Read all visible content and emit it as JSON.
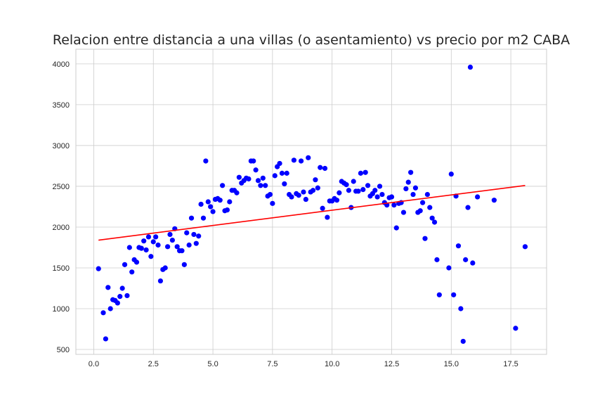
{
  "chart_data": {
    "type": "scatter",
    "title": "Relacion entre distancia a una villas (o asentamiento) vs precio por m2 CABA",
    "xlabel": "",
    "ylabel": "",
    "xlim": [
      -0.75,
      19.0
    ],
    "ylim": [
      440,
      4180
    ],
    "xticks": [
      0.0,
      2.5,
      5.0,
      7.5,
      10.0,
      12.5,
      15.0,
      17.5
    ],
    "xtick_labels": [
      "0.0",
      "2.5",
      "5.0",
      "7.5",
      "10.0",
      "12.5",
      "15.0",
      "17.5"
    ],
    "yticks": [
      500,
      1000,
      1500,
      2000,
      2500,
      3000,
      3500,
      4000
    ],
    "ytick_labels": [
      "500",
      "1000",
      "1500",
      "2000",
      "2500",
      "3000",
      "3500",
      "4000"
    ],
    "grid": true,
    "series": [
      {
        "kind": "scatter",
        "color": "#0000ff",
        "x": [
          0.2,
          0.4,
          0.5,
          0.6,
          0.7,
          0.8,
          0.9,
          1.0,
          1.1,
          1.2,
          1.3,
          1.4,
          1.5,
          1.6,
          1.7,
          1.8,
          1.9,
          2.0,
          2.1,
          2.2,
          2.3,
          2.4,
          2.5,
          2.6,
          2.7,
          2.8,
          2.9,
          3.0,
          3.1,
          3.2,
          3.3,
          3.4,
          3.5,
          3.6,
          3.7,
          3.8,
          3.9,
          4.0,
          4.1,
          4.2,
          4.3,
          4.4,
          4.5,
          4.6,
          4.7,
          4.8,
          4.9,
          5.0,
          5.1,
          5.2,
          5.3,
          5.4,
          5.5,
          5.6,
          5.7,
          5.8,
          5.9,
          6.0,
          6.1,
          6.2,
          6.3,
          6.4,
          6.5,
          6.6,
          6.7,
          6.8,
          6.9,
          7.0,
          7.1,
          7.2,
          7.3,
          7.4,
          7.5,
          7.6,
          7.7,
          7.8,
          7.9,
          8.0,
          8.1,
          8.2,
          8.3,
          8.4,
          8.5,
          8.6,
          8.7,
          8.8,
          8.9,
          9.0,
          9.1,
          9.2,
          9.3,
          9.4,
          9.5,
          9.6,
          9.7,
          9.8,
          9.9,
          10.0,
          10.1,
          10.2,
          10.3,
          10.4,
          10.5,
          10.6,
          10.7,
          10.8,
          10.9,
          11.0,
          11.1,
          11.2,
          11.3,
          11.4,
          11.5,
          11.6,
          11.7,
          11.8,
          11.9,
          12.0,
          12.1,
          12.2,
          12.3,
          12.4,
          12.5,
          12.6,
          12.7,
          12.8,
          12.9,
          13.0,
          13.1,
          13.2,
          13.3,
          13.4,
          13.5,
          13.6,
          13.7,
          13.8,
          13.9,
          14.0,
          14.1,
          14.2,
          14.3,
          14.4,
          14.5,
          14.9,
          15.0,
          15.1,
          15.2,
          15.3,
          15.4,
          15.5,
          15.6,
          15.7,
          15.8,
          15.9,
          16.1,
          16.8,
          17.7,
          18.1
        ],
        "y": [
          1490,
          950,
          630,
          1260,
          1000,
          1110,
          1100,
          1070,
          1150,
          1250,
          1540,
          1160,
          1750,
          1450,
          1600,
          1570,
          1750,
          1740,
          1830,
          1720,
          1880,
          1640,
          1820,
          1880,
          1780,
          1340,
          1480,
          1500,
          1760,
          1910,
          1840,
          1980,
          1760,
          1710,
          1710,
          1540,
          1930,
          1780,
          2110,
          1910,
          1800,
          1890,
          2280,
          2110,
          2810,
          2310,
          2250,
          2190,
          2340,
          2350,
          2330,
          2510,
          2200,
          2210,
          2310,
          2450,
          2450,
          2420,
          2610,
          2540,
          2570,
          2600,
          2590,
          2810,
          2810,
          2700,
          2570,
          2510,
          2600,
          2510,
          2380,
          2400,
          2290,
          2630,
          2740,
          2780,
          2660,
          2530,
          2660,
          2400,
          2370,
          2820,
          2410,
          2390,
          2810,
          2430,
          2340,
          2850,
          2430,
          2450,
          2580,
          2480,
          2730,
          2230,
          2720,
          2120,
          2320,
          2320,
          2350,
          2330,
          2420,
          2560,
          2540,
          2520,
          2450,
          2240,
          2560,
          2440,
          2440,
          2660,
          2460,
          2670,
          2510,
          2380,
          2410,
          2450,
          2370,
          2500,
          2400,
          2300,
          2270,
          2360,
          2370,
          2270,
          1990,
          2290,
          2300,
          2180,
          2470,
          2550,
          2670,
          2400,
          2480,
          2180,
          2200,
          2300,
          1860,
          2400,
          2240,
          2110,
          2060,
          1600,
          1170,
          1500,
          2650,
          1170,
          2380,
          1770,
          1000,
          600,
          1600,
          2240,
          3960,
          1560,
          2370,
          2330,
          760,
          1760
        ]
      },
      {
        "kind": "line",
        "color": "#ff0000",
        "x": [
          0.2,
          18.1
        ],
        "y": [
          1840,
          2510
        ]
      }
    ]
  }
}
